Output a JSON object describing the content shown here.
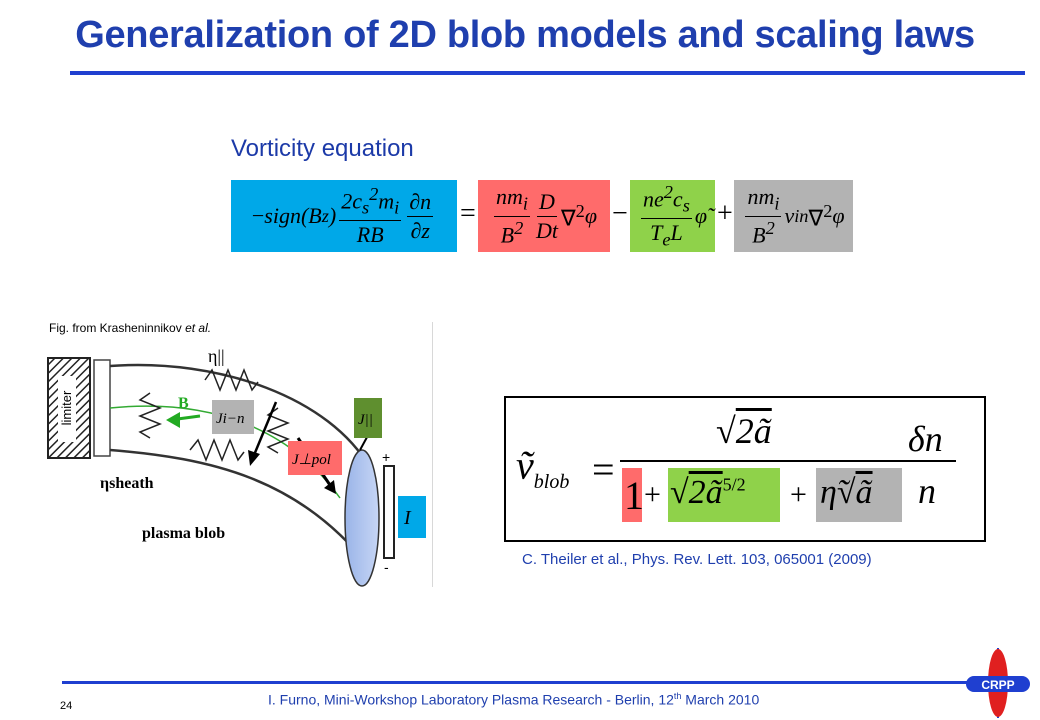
{
  "title": "Generalization of 2D blob models and scaling laws",
  "subheading": "Vorticity equation",
  "equation": {
    "term1": "−sign(B_z) (2c_s² m_i / RB) ∂n/∂z",
    "equals": "=",
    "term2": "(nm_i / B²) (D/Dt) ∇²φ",
    "minus": "−",
    "term3": "(ne² c_s / T_e L) φ̃",
    "plus": "+",
    "term4": "(nm_i / B²) ν_in ∇²φ"
  },
  "figure": {
    "caption_prefix": "Fig. from Krasheninnikov ",
    "caption_italic": "et al.",
    "labels": {
      "eta_parallel": "η||",
      "limiter": "limiter",
      "b_field": "B",
      "eta_sheath": "ηsheath",
      "plasma_blob": "plasma blob",
      "j_in": "Ji−n",
      "j_parallel": "J||",
      "j_pol": "J⊥pol",
      "current_i": "I"
    }
  },
  "blob_formula": {
    "lhs": "ṽ_blob",
    "numerator": "√(2ã)",
    "den_one": "1",
    "den_sqrt": "+√(2ã^(5/2))",
    "den_eta": "+η̃√ã",
    "rhs": "δn / n"
  },
  "citation": "C. Theiler et al., Phys. Rev. Lett. 103, 065001 (2009)",
  "footer": {
    "page_number": "24",
    "text_a": "I. Furno, Mini-Workshop Laboratory Plasma Research -  Berlin, 12",
    "superscript": "th",
    "text_b": " March 2010"
  },
  "logo": {
    "text": "CRPP"
  },
  "colors": {
    "title_blue": "#1f3fae",
    "term_blue": "#00a8e8",
    "term_red": "#ff6b6b",
    "term_green": "#8fd24a",
    "term_gray": "#b3b3b3"
  }
}
